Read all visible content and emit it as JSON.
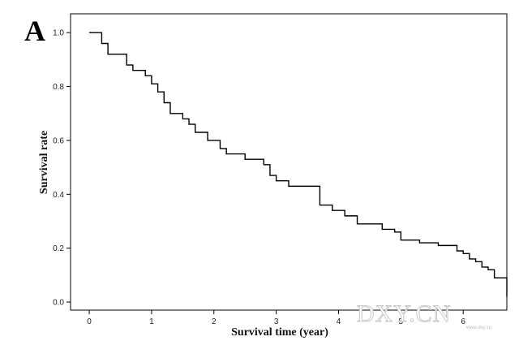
{
  "panel_label": "A",
  "watermark": {
    "main": "DXY.CN",
    "sub": "www.dxy.cn"
  },
  "chart_data": {
    "type": "line",
    "xlabel": "Survival time (year)",
    "ylabel": "Survival rate",
    "xlim": [
      -0.3,
      6.7
    ],
    "ylim": [
      -0.03,
      1.07
    ],
    "xticks": [
      0,
      1,
      2,
      3,
      4,
      5,
      6
    ],
    "xtick_labels": [
      "0",
      "1",
      "2",
      "3",
      "4",
      "5",
      "6"
    ],
    "yticks": [
      0.0,
      0.2,
      0.4,
      0.6,
      0.8,
      1.0
    ],
    "ytick_labels": [
      "0.0",
      "0.2",
      "0.4",
      "0.6",
      "0.8",
      "1.0"
    ],
    "grid": false,
    "step_curve": {
      "x": [
        0.0,
        0.2,
        0.3,
        0.6,
        0.7,
        0.9,
        1.0,
        1.1,
        1.2,
        1.3,
        1.5,
        1.6,
        1.7,
        1.9,
        2.1,
        2.2,
        2.5,
        2.8,
        2.9,
        3.0,
        3.2,
        3.7,
        3.9,
        4.1,
        4.3,
        4.7,
        4.9,
        5.0,
        5.3,
        5.6,
        5.9,
        6.0,
        6.1,
        6.2,
        6.3,
        6.4,
        6.5,
        6.7
      ],
      "y": [
        1.0,
        0.96,
        0.92,
        0.88,
        0.86,
        0.84,
        0.81,
        0.78,
        0.74,
        0.7,
        0.68,
        0.66,
        0.63,
        0.6,
        0.57,
        0.55,
        0.53,
        0.51,
        0.47,
        0.45,
        0.43,
        0.36,
        0.34,
        0.32,
        0.29,
        0.27,
        0.26,
        0.23,
        0.22,
        0.21,
        0.19,
        0.18,
        0.16,
        0.15,
        0.13,
        0.12,
        0.09,
        0.06
      ]
    },
    "end_x": 6.7,
    "end_y": 0.02
  }
}
